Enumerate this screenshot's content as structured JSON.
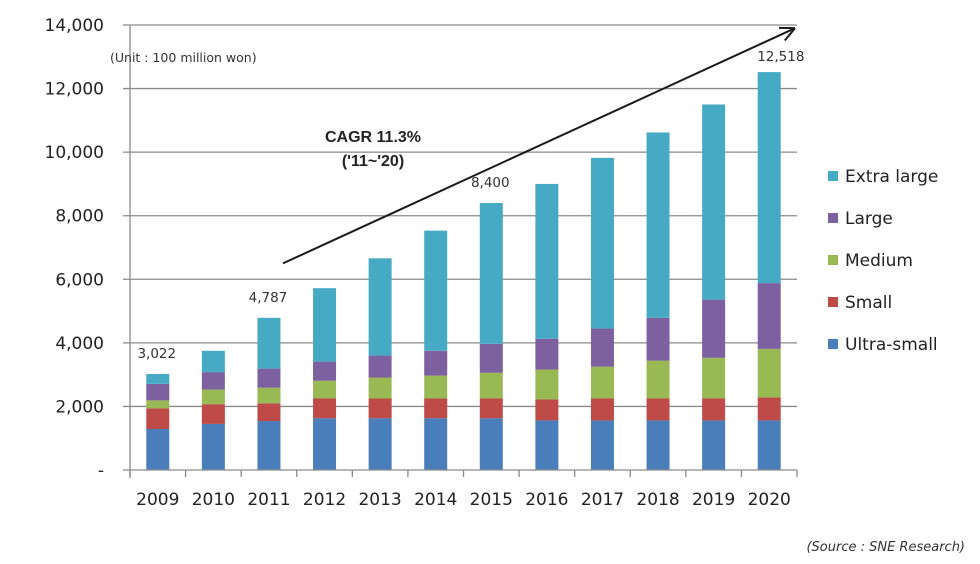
{
  "chart_data": {
    "type": "bar",
    "stacked": true,
    "title": "",
    "unit_note": "(Unit : 100 million won)",
    "xlabel": "",
    "ylabel": "",
    "ylim": [
      0,
      14000
    ],
    "yticks": [
      0,
      2000,
      4000,
      6000,
      8000,
      10000,
      12000,
      14000
    ],
    "ytick_labels": [
      "-",
      "2,000",
      "4,000",
      "6,000",
      "8,000",
      "10,000",
      "12,000",
      "14,000"
    ],
    "grid": true,
    "legend_position": "right",
    "categories": [
      "2009",
      "2010",
      "2011",
      "2012",
      "2013",
      "2014",
      "2015",
      "2016",
      "2017",
      "2018",
      "2019",
      "2020"
    ],
    "series": [
      {
        "name": "Ultra-small",
        "color": "#4a7ebb",
        "values": [
          1290,
          1450,
          1540,
          1630,
          1630,
          1630,
          1630,
          1560,
          1560,
          1560,
          1560,
          1560
        ]
      },
      {
        "name": "Small",
        "color": "#be4b48",
        "values": [
          650,
          620,
          560,
          620,
          620,
          620,
          620,
          660,
          690,
          690,
          690,
          720
        ]
      },
      {
        "name": "Medium",
        "color": "#98b954",
        "values": [
          250,
          460,
          490,
          560,
          660,
          720,
          810,
          940,
          1000,
          1190,
          1280,
          1530
        ]
      },
      {
        "name": "Large",
        "color": "#7d60a0",
        "values": [
          520,
          550,
          600,
          600,
          690,
          780,
          910,
          970,
          1200,
          1350,
          1830,
          2070
        ]
      },
      {
        "name": "Extra large",
        "color": "#46aac5",
        "values": [
          312,
          670,
          1597,
          2310,
          3060,
          3780,
          4430,
          4870,
          5370,
          5830,
          6140,
          6638
        ]
      }
    ],
    "legend_order": [
      "Extra large",
      "Large",
      "Medium",
      "Small",
      "Ultra-small"
    ],
    "data_labels": [
      {
        "category": "2009",
        "text": "3,022"
      },
      {
        "category": "2011",
        "text": "4,787"
      },
      {
        "category": "2015",
        "text": "8,400"
      },
      {
        "category": "2020",
        "text": "12,518"
      }
    ],
    "annotations": {
      "trend_arrow": {
        "from": {
          "category": "2011",
          "value": 6500
        },
        "to": {
          "category": "2020",
          "value": 13900
        }
      },
      "cagr_line1": "CAGR 11.3%",
      "cagr_line2": "('11~'20)"
    },
    "source": "(Source : SNE Research)"
  }
}
